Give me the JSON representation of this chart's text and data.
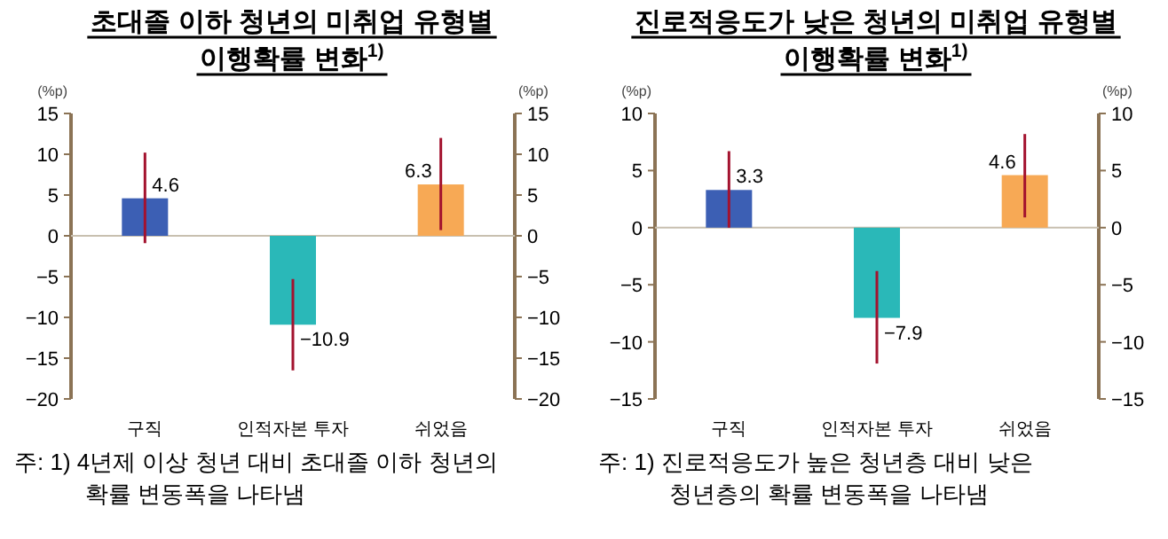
{
  "chart_data": [
    {
      "type": "bar",
      "title": "초대졸 이하 청년의 미취업 유형별 이행확률 변화$^{1)}$",
      "ylabel": "(%p)",
      "y2label": "(%p)",
      "categories": [
        "구직",
        "인적자본 투자",
        "쉬었음"
      ],
      "values": [
        4.6,
        -10.9,
        6.3
      ],
      "colors": [
        "#3c5fb4",
        "#2ab8b8",
        "#f7a955"
      ],
      "errors": [
        [
          -0.9,
          10.2
        ],
        [
          -16.5,
          -5.3
        ],
        [
          0.7,
          12.0
        ]
      ],
      "data_labels": true,
      "ylim": [
        -20,
        15
      ],
      "yticks": [
        -20,
        -15,
        -10,
        -5,
        0,
        5,
        10,
        15
      ],
      "y2lim": [
        -20,
        15
      ],
      "y2ticks": [
        -20,
        -15,
        -10,
        -5,
        0,
        5,
        10,
        15
      ],
      "annotations": [
        "주: 1) 4년제 이상 청년 대비 초대졸 이하 청년의 확률 변동폭을 나타냄"
      ]
    },
    {
      "type": "bar",
      "title": "진로적응도가 낮은 청년의 미취업 유형별 이행확률 변화$^{1)}$",
      "ylabel": "(%p)",
      "y2label": "(%p)",
      "categories": [
        "구직",
        "인적자본 투자",
        "쉬었음"
      ],
      "values": [
        3.3,
        -7.9,
        4.6
      ],
      "colors": [
        "#3c5fb4",
        "#2ab8b8",
        "#f7a955"
      ],
      "errors": [
        [
          0.0,
          6.7
        ],
        [
          -11.9,
          -3.8
        ],
        [
          0.9,
          8.2
        ]
      ],
      "data_labels": true,
      "ylim": [
        -15,
        10
      ],
      "yticks": [
        -15,
        -10,
        -5,
        0,
        5,
        10
      ],
      "y2lim": [
        -15,
        10
      ],
      "y2ticks": [
        -15,
        -10,
        -5,
        0,
        5,
        10
      ],
      "annotations": [
        "주: 1) 진로적응도가 높은 청년층 대비 낮은 청년층의 확률 변동폭을 나타냄"
      ]
    }
  ]
}
